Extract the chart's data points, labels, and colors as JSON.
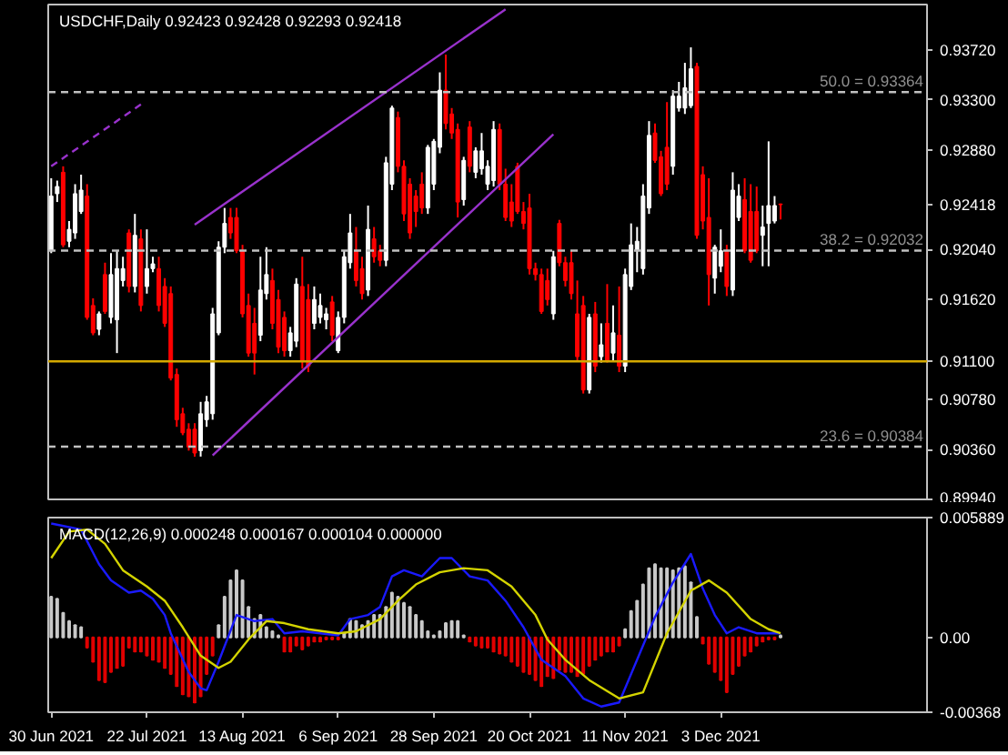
{
  "chart_data": [
    {
      "type": "candlestick",
      "title": "USDCHF,Daily 0.92423 0.92428 0.92293 0.92418",
      "tick_labels": "y",
      "categories": [
        null,
        null,
        null,
        null,
        null,
        null,
        null,
        null,
        null,
        null,
        null,
        null,
        null,
        null,
        null,
        null,
        null,
        null,
        null,
        null,
        null,
        null,
        null,
        null,
        null,
        null,
        null,
        null,
        null,
        null,
        null,
        null,
        null,
        null,
        null,
        null,
        null,
        null,
        null,
        null,
        null,
        null,
        null,
        null,
        null,
        null,
        null,
        null,
        null,
        null,
        null,
        null,
        null,
        null,
        null,
        null,
        null,
        null,
        null,
        null,
        null,
        null,
        null,
        null,
        null,
        null,
        null,
        null,
        null,
        null,
        null,
        null,
        null,
        null,
        null,
        null,
        null,
        null,
        null,
        null,
        null,
        null,
        null,
        null,
        null,
        null,
        null,
        null,
        null,
        null,
        null,
        null,
        null,
        null,
        null,
        null,
        null,
        null,
        null,
        null,
        null,
        null,
        null,
        null,
        null,
        null,
        null,
        null,
        null,
        null,
        null,
        null,
        null,
        null,
        null,
        null,
        null,
        null,
        null,
        null,
        null,
        null,
        null,
        null,
        null,
        null,
        null,
        null,
        null,
        null,
        null,
        null,
        null,
        null,
        null,
        null,
        null,
        null,
        null,
        null,
        null,
        null,
        null,
        null,
        null,
        null,
        null
      ],
      "ohlc": [
        [
          0.9203,
          0.9264,
          0.9201,
          0.9249
        ],
        [
          0.9251,
          0.9262,
          0.9244,
          0.9257
        ],
        [
          0.9269,
          0.9274,
          0.9206,
          0.9208
        ],
        [
          0.9211,
          0.9228,
          0.9206,
          0.9221
        ],
        [
          0.9218,
          0.9259,
          0.9213,
          0.9251
        ],
        [
          0.9236,
          0.9267,
          0.9234,
          0.9254
        ],
        [
          0.9249,
          0.9259,
          0.9145,
          0.9147
        ],
        [
          0.9157,
          0.9163,
          0.9132,
          0.9134
        ],
        [
          0.9137,
          0.9152,
          0.9132,
          0.915
        ],
        [
          0.9183,
          0.9193,
          0.915,
          0.9152
        ],
        [
          0.9147,
          0.9201,
          0.9142,
          0.9183
        ],
        [
          0.9145,
          0.9203,
          0.9117,
          0.9188
        ],
        [
          0.9178,
          0.9198,
          0.9173,
          0.9188
        ],
        [
          0.9218,
          0.9221,
          0.9168,
          0.9173
        ],
        [
          0.9173,
          0.9234,
          0.9168,
          0.9216
        ],
        [
          0.9213,
          0.9221,
          0.9152,
          0.9157
        ],
        [
          0.9173,
          0.9221,
          0.9167,
          0.9188
        ],
        [
          0.9188,
          0.9198,
          0.9185,
          0.9192
        ],
        [
          0.9188,
          0.9198,
          0.9152,
          0.9157
        ],
        [
          0.9173,
          0.918,
          0.9139,
          0.9142
        ],
        [
          0.9167,
          0.9173,
          0.9094,
          0.9096
        ],
        [
          0.9099,
          0.9104,
          0.9055,
          0.9061
        ],
        [
          0.9066,
          0.9071,
          0.9048,
          0.905
        ],
        [
          0.9053,
          0.9058,
          0.9035,
          0.9038
        ],
        [
          0.9053,
          0.9058,
          0.903,
          0.9033
        ],
        [
          0.9035,
          0.9076,
          0.903,
          0.9066
        ],
        [
          0.9061,
          0.9081,
          0.9055,
          0.9076
        ],
        [
          0.9066,
          0.9155,
          0.9061,
          0.915
        ],
        [
          0.9134,
          0.9211,
          0.9132,
          0.9206
        ],
        [
          0.9206,
          0.9239,
          0.9201,
          0.9226
        ],
        [
          0.9231,
          0.9239,
          0.9213,
          0.9218
        ],
        [
          0.9231,
          0.9239,
          0.9201,
          0.9203
        ],
        [
          0.9203,
          0.9208,
          0.9147,
          0.915
        ],
        [
          0.9157,
          0.9167,
          0.9114,
          0.9117
        ],
        [
          0.9142,
          0.9155,
          0.9099,
          0.9117
        ],
        [
          0.9132,
          0.9198,
          0.9127,
          0.917
        ],
        [
          0.9167,
          0.9206,
          0.9162,
          0.9183
        ],
        [
          0.9178,
          0.9188,
          0.9137,
          0.9142
        ],
        [
          0.9162,
          0.917,
          0.9117,
          0.9122
        ],
        [
          0.9147,
          0.9152,
          0.9114,
          0.9119
        ],
        [
          0.9119,
          0.9139,
          0.9114,
          0.9134
        ],
        [
          0.9127,
          0.918,
          0.9122,
          0.9175
        ],
        [
          0.9173,
          0.9198,
          0.9104,
          0.9111
        ],
        [
          0.9162,
          0.9175,
          0.9101,
          0.9106
        ],
        [
          0.9142,
          0.9173,
          0.9137,
          0.9162
        ],
        [
          0.9147,
          0.9167,
          0.9142,
          0.9157
        ],
        [
          0.9145,
          0.9155,
          0.9137,
          0.915
        ],
        [
          0.916,
          0.9165,
          0.9127,
          0.9132
        ],
        [
          0.9119,
          0.9152,
          0.9117,
          0.9147
        ],
        [
          0.9147,
          0.9203,
          0.9142,
          0.9198
        ],
        [
          0.9193,
          0.9234,
          0.9188,
          0.9218
        ],
        [
          0.9203,
          0.9223,
          0.9173,
          0.9178
        ],
        [
          0.9188,
          0.9198,
          0.9162,
          0.9167
        ],
        [
          0.917,
          0.9241,
          0.9165,
          0.9221
        ],
        [
          0.9213,
          0.9223,
          0.9193,
          0.9198
        ],
        [
          0.9203,
          0.9208,
          0.919,
          0.9195
        ],
        [
          0.9195,
          0.9282,
          0.919,
          0.9277
        ],
        [
          0.9259,
          0.9325,
          0.9254,
          0.9323
        ],
        [
          0.9315,
          0.932,
          0.9269,
          0.9274
        ],
        [
          0.9274,
          0.9279,
          0.9228,
          0.9234
        ],
        [
          0.9259,
          0.9264,
          0.9213,
          0.9218
        ],
        [
          0.9249,
          0.9254,
          0.9223,
          0.9236
        ],
        [
          0.9259,
          0.9269,
          0.9234,
          0.9239
        ],
        [
          0.9239,
          0.9292,
          0.9234,
          0.929
        ],
        [
          0.9259,
          0.9297,
          0.9254,
          0.9295
        ],
        [
          0.929,
          0.9353,
          0.9285,
          0.9338
        ],
        [
          0.9338,
          0.9368,
          0.9305,
          0.931
        ],
        [
          0.9318,
          0.9323,
          0.9297,
          0.9302
        ],
        [
          0.9305,
          0.931,
          0.9231,
          0.9244
        ],
        [
          0.9246,
          0.9282,
          0.9241,
          0.9279
        ],
        [
          0.9307,
          0.9312,
          0.9269,
          0.9274
        ],
        [
          0.9269,
          0.929,
          0.9264,
          0.9287
        ],
        [
          0.9272,
          0.9302,
          0.9267,
          0.9287
        ],
        [
          0.9259,
          0.9279,
          0.9254,
          0.9274
        ],
        [
          0.9262,
          0.9312,
          0.9257,
          0.9305
        ],
        [
          0.9305,
          0.931,
          0.9254,
          0.9259
        ],
        [
          0.9259,
          0.9272,
          0.9228,
          0.9231
        ],
        [
          0.9244,
          0.9259,
          0.9223,
          0.9228
        ],
        [
          0.9274,
          0.9277,
          0.9234,
          0.9236
        ],
        [
          0.9236,
          0.9244,
          0.9221,
          0.9226
        ],
        [
          0.9239,
          0.9251,
          0.9183,
          0.9188
        ],
        [
          0.9188,
          0.9193,
          0.9178,
          0.9183
        ],
        [
          0.9183,
          0.9188,
          0.915,
          0.9152
        ],
        [
          0.9178,
          0.9188,
          0.9157,
          0.9162
        ],
        [
          0.915,
          0.9203,
          0.9145,
          0.9198
        ],
        [
          0.9226,
          0.9229,
          0.919,
          0.9193
        ],
        [
          0.9193,
          0.9198,
          0.9173,
          0.9178
        ],
        [
          0.9193,
          0.9203,
          0.9162,
          0.9167
        ],
        [
          0.915,
          0.9178,
          0.9111,
          0.9114
        ],
        [
          0.9157,
          0.9165,
          0.9083,
          0.9086
        ],
        [
          0.9086,
          0.915,
          0.9083,
          0.9147
        ],
        [
          0.915,
          0.916,
          0.9101,
          0.9106
        ],
        [
          0.9114,
          0.9142,
          0.9109,
          0.9124
        ],
        [
          0.9142,
          0.9175,
          0.9109,
          0.9111
        ],
        [
          0.9117,
          0.9157,
          0.9111,
          0.9134
        ],
        [
          0.9132,
          0.9173,
          0.9101,
          0.9106
        ],
        [
          0.9106,
          0.9188,
          0.9101,
          0.9183
        ],
        [
          0.9173,
          0.9226,
          0.917,
          0.9208
        ],
        [
          0.9203,
          0.9223,
          0.9185,
          0.9211
        ],
        [
          0.9188,
          0.9259,
          0.9183,
          0.9249
        ],
        [
          0.9239,
          0.9312,
          0.9234,
          0.93
        ],
        [
          0.9302,
          0.931,
          0.9277,
          0.9279
        ],
        [
          0.9282,
          0.9287,
          0.9249,
          0.9251
        ],
        [
          0.929,
          0.9328,
          0.9254,
          0.9259
        ],
        [
          0.9274,
          0.9338,
          0.9267,
          0.9333
        ],
        [
          0.9323,
          0.9345,
          0.932,
          0.9333
        ],
        [
          0.9323,
          0.9361,
          0.9318,
          0.934
        ],
        [
          0.9325,
          0.9374,
          0.9323,
          0.9356
        ],
        [
          0.9358,
          0.9361,
          0.9213,
          0.9216
        ],
        [
          0.9267,
          0.9274,
          0.9221,
          0.9228
        ],
        [
          0.9231,
          0.9264,
          0.9157,
          0.9183
        ],
        [
          0.918,
          0.9208,
          0.9167,
          0.9206
        ],
        [
          0.919,
          0.9221,
          0.9185,
          0.9203
        ],
        [
          0.9203,
          0.9208,
          0.9165,
          0.9173
        ],
        [
          0.917,
          0.9269,
          0.9165,
          0.9254
        ],
        [
          0.9231,
          0.9259,
          0.9228,
          0.9249
        ],
        [
          0.9246,
          0.9264,
          0.9201,
          0.9203
        ],
        [
          0.9236,
          0.9259,
          0.9193,
          0.9195
        ],
        [
          0.9236,
          0.9257,
          0.9201,
          0.9203
        ],
        [
          0.9216,
          0.9241,
          0.919,
          0.9223
        ],
        [
          0.9226,
          0.9295,
          0.919,
          0.9241
        ],
        [
          0.9228,
          0.9249,
          0.9226,
          0.9241
        ],
        [
          0.92423,
          0.92428,
          0.92293,
          0.92418
        ],
        null,
        null,
        null,
        null,
        null,
        null,
        null,
        null,
        null,
        null,
        null,
        null,
        null,
        null,
        null,
        null,
        null,
        null,
        null,
        null,
        null,
        null,
        null,
        null
      ],
      "series": [
        {
          "type": "line",
          "color": "#9932cc",
          "values": [
            null,
            null,
            null,
            null,
            null,
            null,
            null,
            null,
            null,
            null,
            null,
            null,
            null,
            null,
            null,
            null,
            null,
            null,
            null,
            null,
            null,
            null,
            null,
            null,
            0.9225,
            null,
            null,
            null,
            null,
            null,
            null,
            null,
            null,
            null,
            null,
            null,
            null,
            null,
            null,
            null,
            null,
            null,
            null,
            null,
            null,
            null,
            null,
            null,
            null,
            null,
            null,
            null,
            null,
            null,
            null,
            null,
            null,
            null,
            null,
            null,
            null,
            null,
            null,
            null,
            null,
            null,
            null,
            null,
            null,
            null,
            null,
            null,
            null,
            null,
            null,
            null,
            0.9406,
            null,
            null,
            null,
            null,
            null,
            null,
            null,
            null,
            null,
            null,
            null,
            null,
            null,
            null,
            null,
            null,
            null,
            null,
            null,
            null,
            null,
            null,
            null,
            null,
            null,
            null,
            null,
            null,
            null,
            null,
            null,
            null,
            null,
            null,
            null,
            null,
            null,
            null,
            null,
            null,
            null,
            null,
            null,
            null,
            null,
            null,
            null,
            null,
            null,
            null,
            null,
            null,
            null,
            null,
            null,
            null,
            null,
            null,
            null,
            null,
            null,
            null,
            null,
            null,
            null,
            null,
            null,
            null,
            null,
            null
          ]
        },
        {
          "type": "line",
          "color": "#9932cc",
          "values": [
            null,
            null,
            null,
            null,
            null,
            null,
            null,
            null,
            null,
            null,
            null,
            null,
            null,
            null,
            null,
            null,
            null,
            null,
            null,
            null,
            null,
            null,
            null,
            null,
            null,
            null,
            null,
            0.9031,
            null,
            null,
            null,
            null,
            null,
            null,
            null,
            null,
            null,
            null,
            null,
            null,
            null,
            null,
            null,
            null,
            null,
            null,
            null,
            null,
            null,
            null,
            null,
            null,
            null,
            null,
            null,
            null,
            null,
            null,
            null,
            null,
            null,
            null,
            null,
            null,
            null,
            null,
            null,
            null,
            null,
            null,
            null,
            null,
            null,
            null,
            null,
            null,
            null,
            null,
            null,
            null,
            null,
            null,
            null,
            null,
            0.9301,
            null,
            null,
            null,
            null,
            null,
            null,
            null,
            null,
            null,
            null,
            null,
            null,
            null,
            null,
            null,
            null,
            null,
            null,
            null,
            null,
            null,
            null,
            null,
            null,
            null,
            null,
            null,
            null,
            null,
            null,
            null,
            null,
            null,
            null,
            null,
            null,
            null,
            null,
            null,
            null,
            null,
            null,
            null,
            null,
            null,
            null,
            null,
            null,
            null,
            null,
            null,
            null,
            null,
            null,
            null,
            null,
            null,
            null,
            null,
            null,
            null,
            null
          ]
        },
        {
          "type": "line",
          "color": "#9932cc",
          "line_style": "dashed",
          "values": [
            0.9274,
            null,
            null,
            null,
            null,
            null,
            null,
            null,
            null,
            null,
            null,
            null,
            null,
            null,
            null,
            0.9326,
            null,
            null,
            null,
            null,
            null,
            null,
            null,
            null,
            null,
            null,
            null,
            null,
            null,
            null,
            null,
            null,
            null,
            null,
            null,
            null,
            null,
            null,
            null,
            null,
            null,
            null,
            null,
            null,
            null,
            null,
            null,
            null,
            null,
            null,
            null,
            null,
            null,
            null,
            null,
            null,
            null,
            null,
            null,
            null,
            null,
            null,
            null,
            null,
            null,
            null,
            null,
            null,
            null,
            null,
            null,
            null,
            null,
            null,
            null,
            null,
            null,
            null,
            null,
            null,
            null,
            null,
            null,
            null,
            null,
            null,
            null,
            null,
            null,
            null,
            null,
            null,
            null,
            null,
            null,
            null,
            null,
            null,
            null,
            null,
            null,
            null,
            null,
            null,
            null,
            null,
            null,
            null,
            null,
            null,
            null,
            null,
            null,
            null,
            null,
            null,
            null,
            null,
            null,
            null,
            null,
            null,
            null,
            null,
            null,
            null,
            null,
            null,
            null,
            null,
            null,
            null,
            null,
            null,
            null,
            null,
            null,
            null,
            null,
            null,
            null,
            null,
            null,
            null,
            null,
            null,
            null
          ]
        }
      ],
      "ylim": [
        0.8994,
        0.941
      ],
      "yticks": [
        {
          "value": 0.8994,
          "label": "0.89940"
        },
        {
          "value": 0.9036,
          "label": "0.90360"
        },
        {
          "value": 0.9078,
          "label": "0.90780"
        },
        {
          "value": 0.911,
          "label": "0.91100"
        },
        {
          "value": 0.9162,
          "label": "0.91620"
        },
        {
          "value": 0.9204,
          "label": "0.92040"
        },
        {
          "value": 0.92418,
          "label": "0.92418"
        },
        {
          "value": 0.9288,
          "label": "0.92880"
        },
        {
          "value": 0.933,
          "label": "0.93300"
        },
        {
          "value": 0.9372,
          "label": "0.93720"
        }
      ],
      "ref_lines": [
        {
          "axis": "y",
          "value": 0.93364,
          "label": "50.0 = 0.93364",
          "color": "#c0c0c0",
          "line_style": "dashed"
        },
        {
          "axis": "y",
          "value": 0.92032,
          "label": "38.2 = 0.92032",
          "color": "#c0c0c0",
          "line_style": "dashed"
        },
        {
          "axis": "y",
          "value": 0.90384,
          "label": "23.6 = 0.90384",
          "color": "#c0c0c0",
          "line_style": "dashed"
        },
        {
          "axis": "y",
          "value": 0.911,
          "color": "#d4a900",
          "line_style": "solid"
        }
      ]
    },
    {
      "type": "bar",
      "title": "MACD(12,26,9) 0.000248 0.000167 0.000104 0.000000",
      "categories": [
        "30 Jun 2021",
        null,
        null,
        null,
        null,
        null,
        null,
        null,
        null,
        null,
        null,
        null,
        null,
        null,
        null,
        null,
        "22 Jul 2021",
        null,
        null,
        null,
        null,
        null,
        null,
        null,
        null,
        null,
        null,
        null,
        null,
        null,
        null,
        null,
        "13 Aug 2021",
        null,
        null,
        null,
        null,
        null,
        null,
        null,
        null,
        null,
        null,
        null,
        null,
        null,
        null,
        null,
        "6 Sep 2021",
        null,
        null,
        null,
        null,
        null,
        null,
        null,
        null,
        null,
        null,
        null,
        null,
        null,
        null,
        null,
        "28 Sep 2021",
        null,
        null,
        null,
        null,
        null,
        null,
        null,
        null,
        null,
        null,
        null,
        null,
        null,
        null,
        null,
        "20 Oct 2021",
        null,
        null,
        null,
        null,
        null,
        null,
        null,
        null,
        null,
        null,
        null,
        null,
        null,
        null,
        null,
        "11 Nov 2021",
        null,
        null,
        null,
        null,
        null,
        null,
        null,
        null,
        null,
        null,
        null,
        null,
        null,
        null,
        null,
        "3 Dec 2021",
        null,
        null,
        null,
        null,
        null,
        null,
        null,
        null,
        null,
        null,
        null,
        null,
        null,
        null,
        null,
        null,
        null,
        null,
        null,
        null,
        null,
        null,
        null,
        null,
        null,
        null,
        null,
        null,
        null,
        null,
        null,
        null,
        null,
        null
      ],
      "series": [
        {
          "type": "bar",
          "color": "#c8c8c8",
          "values": [
            0.002,
            0.0019,
            0.0012,
            0.0008,
            0.0006,
            0.0005,
            null,
            null,
            null,
            null,
            null,
            null,
            null,
            null,
            null,
            null,
            null,
            null,
            null,
            null,
            null,
            null,
            null,
            null,
            null,
            null,
            null,
            null,
            0.0006,
            0.002,
            0.0028,
            0.0033,
            0.0028,
            0.0015,
            0.0009,
            0.0011,
            0.0005,
            0.0003,
            0.0001,
            null,
            null,
            null,
            null,
            null,
            null,
            null,
            null,
            null,
            null,
            0.0002,
            0.0009,
            0.0008,
            0.0006,
            0.0008,
            0.0011,
            0.0011,
            0.0015,
            0.0022,
            0.002,
            0.0017,
            0.0015,
            0.0011,
            0.0008,
            0.0003,
            0.0001,
            0.0003,
            0.0007,
            0.0008,
            0.0008,
            0.0001,
            null,
            null,
            null,
            null,
            null,
            null,
            null,
            null,
            null,
            null,
            null,
            null,
            null,
            null,
            null,
            null,
            null,
            null,
            null,
            null,
            null,
            null,
            null,
            null,
            null,
            null,
            0.0004,
            0.0013,
            0.0018,
            0.0026,
            0.0034,
            0.0036,
            0.0034,
            0.0034,
            0.0033,
            0.0034,
            0.0035,
            0.0027,
            0.001,
            null,
            null,
            null,
            null,
            null,
            null,
            null,
            null,
            null,
            null,
            null,
            null,
            null,
            0.0001,
            null,
            null,
            null,
            null,
            null,
            null,
            null,
            null,
            null,
            null,
            null,
            null,
            null,
            null,
            null,
            null,
            null,
            null,
            null,
            null,
            null,
            null,
            null,
            null
          ]
        },
        {
          "type": "bar",
          "color": "#e00000",
          "values": [
            null,
            null,
            null,
            null,
            null,
            null,
            -0.0005,
            -0.0012,
            -0.0021,
            -0.0022,
            -0.0017,
            -0.0015,
            -0.0014,
            -0.0005,
            -0.0007,
            -0.0007,
            -0.0009,
            -0.0011,
            -0.0012,
            -0.0015,
            -0.0018,
            -0.0024,
            -0.0028,
            -0.0029,
            -0.0032,
            -0.0029,
            -0.0018,
            -0.0009,
            null,
            null,
            null,
            null,
            null,
            null,
            null,
            null,
            null,
            null,
            null,
            -0.0007,
            -0.0007,
            -0.0004,
            -0.0006,
            -0.0004,
            -0.0002,
            -0.0002,
            -0.0001,
            -0.0001,
            -0.0001,
            null,
            null,
            null,
            null,
            null,
            null,
            null,
            null,
            null,
            null,
            null,
            null,
            null,
            null,
            null,
            null,
            null,
            null,
            null,
            null,
            null,
            -0.0002,
            -0.0004,
            -0.0005,
            -0.0005,
            -0.0007,
            -0.0008,
            -0.0009,
            -0.0012,
            -0.0014,
            -0.0017,
            -0.0018,
            -0.0021,
            -0.0024,
            -0.0019,
            -0.002,
            -0.0016,
            -0.0017,
            -0.0017,
            -0.0019,
            -0.0018,
            -0.0014,
            -0.0011,
            -0.0009,
            -0.0007,
            -0.0007,
            -0.0004,
            null,
            null,
            null,
            null,
            null,
            null,
            null,
            null,
            null,
            null,
            null,
            null,
            null,
            -0.0003,
            -0.0013,
            -0.0017,
            -0.0021,
            -0.0027,
            -0.0018,
            -0.0014,
            -0.0009,
            -0.0007,
            -0.0004,
            -0.0002,
            -0.0001,
            -0.0001,
            null,
            null,
            null,
            null,
            null,
            null,
            null,
            null,
            null,
            null,
            null,
            null,
            null,
            null,
            null,
            null,
            null,
            null,
            null,
            null,
            null,
            null,
            null,
            null,
            null
          ]
        },
        {
          "type": "line",
          "color": "#1a1aff",
          "values": [
            0.0056,
            null,
            null,
            null,
            null,
            0.0053,
            null,
            null,
            0.0036,
            null,
            0.0028,
            null,
            null,
            0.0022,
            null,
            0.0023,
            null,
            0.0019,
            null,
            0.0011,
            0.0002,
            null,
            null,
            -0.0017,
            null,
            -0.0025,
            -0.0026,
            null,
            -0.0012,
            null,
            null,
            0.0011,
            null,
            null,
            0.0008,
            null,
            null,
            0.0009,
            null,
            0.0002,
            null,
            null,
            0.0003,
            null,
            null,
            0.0002,
            null,
            null,
            0.0001,
            null,
            0.0009,
            null,
            null,
            0.0011,
            null,
            0.0015,
            null,
            0.003,
            null,
            0.0033,
            null,
            null,
            0.003,
            null,
            null,
            0.0039,
            null,
            0.0039,
            null,
            null,
            0.003,
            null,
            null,
            0.0028,
            null,
            null,
            0.0018,
            null,
            null,
            0.0005,
            null,
            null,
            -0.0011,
            -0.0013,
            null,
            null,
            -0.0019,
            null,
            null,
            -0.003,
            null,
            null,
            -0.0034,
            null,
            null,
            -0.0032,
            null,
            -0.0018,
            null,
            null,
            null,
            0.001,
            null,
            null,
            0.0027,
            null,
            null,
            0.0041,
            null,
            0.0024,
            null,
            0.0011,
            null,
            0.0002,
            null,
            0.0005,
            null,
            null,
            0.0002,
            null,
            0.0002,
            null,
            0.0002,
            null,
            null,
            null,
            null,
            null,
            null,
            null,
            null,
            null,
            null,
            null,
            null,
            null,
            null,
            null,
            null,
            null,
            null,
            null,
            null,
            null,
            null,
            null,
            null
          ]
        },
        {
          "type": "line",
          "color": "#d4d400",
          "values": [
            0.0039,
            null,
            null,
            0.0052,
            null,
            null,
            0.0053,
            null,
            null,
            0.0046,
            null,
            null,
            0.0033,
            null,
            null,
            null,
            0.0025,
            null,
            null,
            0.0018,
            null,
            null,
            0.0005,
            null,
            null,
            -0.0009,
            null,
            null,
            -0.0015,
            null,
            -0.0012,
            null,
            null,
            -0.0001,
            null,
            null,
            0.0008,
            null,
            null,
            0.0007,
            null,
            null,
            null,
            0.0004,
            null,
            null,
            null,
            null,
            0.0002,
            null,
            null,
            0.0003,
            null,
            null,
            null,
            0.0009,
            null,
            null,
            0.0018,
            null,
            null,
            0.0026,
            null,
            null,
            null,
            0.0032,
            null,
            null,
            null,
            0.0034,
            null,
            null,
            null,
            0.0033,
            null,
            null,
            null,
            0.0025,
            null,
            null,
            null,
            0.0011,
            null,
            -0.0001,
            null,
            null,
            -0.0011,
            null,
            null,
            null,
            -0.0021,
            null,
            null,
            null,
            null,
            -0.003,
            null,
            null,
            null,
            -0.0027,
            null,
            null,
            null,
            0.0002,
            null,
            null,
            null,
            0.0023,
            null,
            null,
            0.0028,
            null,
            null,
            0.0022,
            null,
            null,
            null,
            0.0009,
            null,
            null,
            0.0004,
            null,
            0.0002,
            null,
            null,
            null,
            null,
            null,
            null,
            null,
            null,
            null,
            null,
            null,
            null,
            null,
            null,
            null,
            null,
            null,
            null,
            null,
            null,
            null,
            null,
            null,
            null
          ]
        }
      ],
      "ylim": [
        -0.00368,
        0.005889
      ],
      "yticks": [
        {
          "value": -0.00368,
          "label": "-0.00368"
        },
        {
          "value": 0,
          "label": "0.00"
        },
        {
          "value": 0.005889,
          "label": "0.005889"
        }
      ]
    }
  ]
}
